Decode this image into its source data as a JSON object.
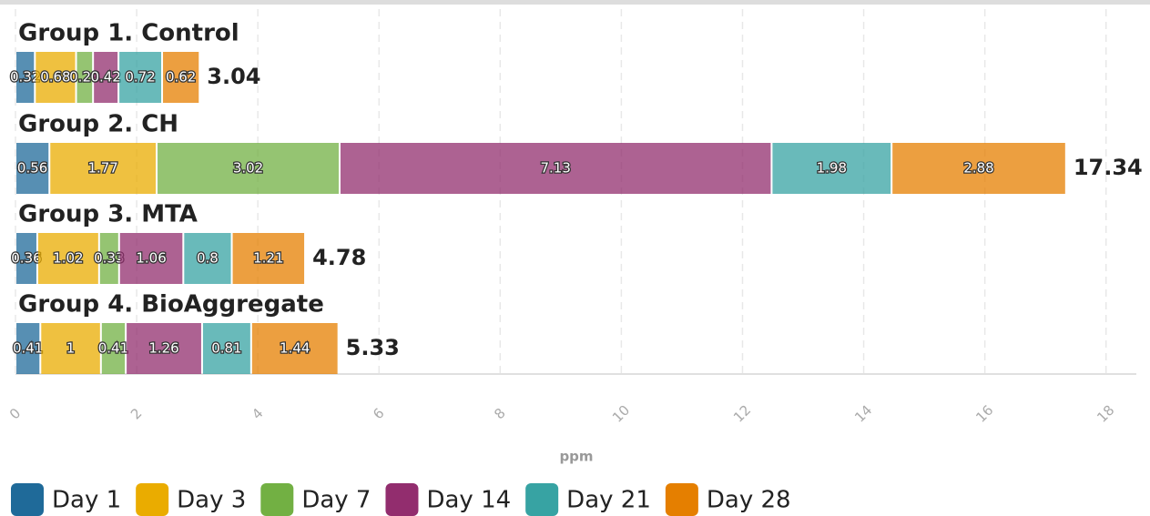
{
  "chart_data": {
    "type": "stacked-bar-horizontal",
    "x_label": "ppm",
    "categories": [
      "Group 1. Control",
      "Group 2. CH",
      "Group 3. MTA",
      "Group 4. BioAggregate"
    ],
    "totals": [
      3.04,
      17.34,
      4.78,
      5.33
    ],
    "series": [
      {
        "name": "Day 1",
        "color": "#1f6a99",
        "values": [
          0.32,
          0.56,
          0.36,
          0.41
        ]
      },
      {
        "name": "Day 3",
        "color": "#eaac00",
        "values": [
          0.68,
          1.77,
          1.02,
          1
        ]
      },
      {
        "name": "Day 7",
        "color": "#72b043",
        "values": [
          0.28,
          3.02,
          0.33,
          0.41
        ]
      },
      {
        "name": "Day 14",
        "color": "#922d6e",
        "values": [
          0.42,
          7.13,
          1.06,
          1.26
        ]
      },
      {
        "name": "Day 21",
        "color": "#37a3a3",
        "values": [
          0.72,
          1.98,
          0.8,
          0.81
        ]
      },
      {
        "name": "Day 28",
        "color": "#e57f00",
        "values": [
          0.62,
          2.88,
          1.21,
          1.44
        ]
      }
    ],
    "xlim": [
      0,
      18.5
    ],
    "xticks": [
      0,
      2,
      4,
      6,
      8,
      10,
      12,
      14,
      16,
      18
    ],
    "grid": true
  }
}
